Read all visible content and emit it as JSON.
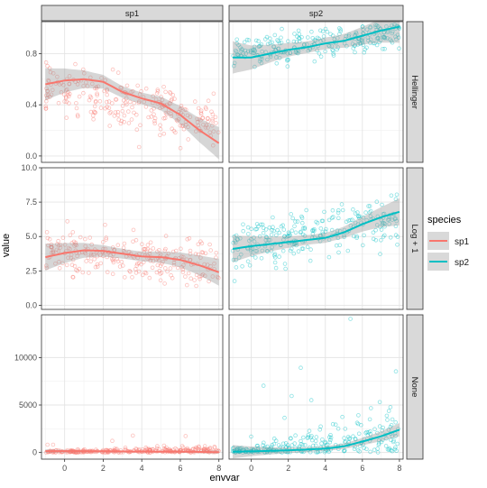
{
  "chart_data": {
    "type": "scatter",
    "facet_columns": [
      "sp1",
      "sp2"
    ],
    "facet_rows": [
      "Hellinger",
      "Log + 1",
      "None"
    ],
    "xlabel": "envvar",
    "ylabel": "value",
    "x_ticks": [
      0,
      2,
      4,
      6,
      8
    ],
    "xlim": [
      -1.2,
      8.2
    ],
    "scales": "free_y",
    "grid": true,
    "legend": {
      "title": "species",
      "placement": "right",
      "entries": [
        {
          "name": "sp1",
          "color": "#F8766D"
        },
        {
          "name": "sp2",
          "color": "#00BFC4"
        }
      ]
    },
    "panels": [
      {
        "row": "Hellinger",
        "ylim": [
          -0.05,
          1.05
        ],
        "y_ticks": [
          0.0,
          0.4,
          0.8
        ],
        "y_tick_labels": [
          "0.0",
          "0.4",
          "0.8"
        ],
        "sp1": {
          "smooth": [
            [
              -1,
              0.56
            ],
            [
              0,
              0.59
            ],
            [
              1,
              0.6
            ],
            [
              2,
              0.58
            ],
            [
              3,
              0.5
            ],
            [
              4,
              0.45
            ],
            [
              5,
              0.41
            ],
            [
              6,
              0.32
            ],
            [
              7,
              0.2
            ],
            [
              8,
              0.1
            ]
          ],
          "point_center": [
            [
              -1,
              0.55
            ],
            [
              8,
              0.25
            ]
          ],
          "point_spread": 0.22
        },
        "sp2": {
          "smooth": [
            [
              -1,
              0.77
            ],
            [
              0,
              0.77
            ],
            [
              1,
              0.8
            ],
            [
              2,
              0.83
            ],
            [
              3,
              0.85
            ],
            [
              4,
              0.88
            ],
            [
              5,
              0.9
            ],
            [
              6,
              0.94
            ],
            [
              7,
              0.98
            ],
            [
              8,
              1.01
            ]
          ],
          "point_center": [
            [
              -1,
              0.8
            ],
            [
              8,
              0.95
            ]
          ],
          "point_spread": 0.13
        }
      },
      {
        "row": "Log + 1",
        "ylim": [
          -0.3,
          10.0
        ],
        "y_ticks": [
          0.0,
          2.5,
          5.0,
          7.5,
          10.0
        ],
        "y_tick_labels": [
          "0.0",
          "2.5",
          "5.0",
          "7.5",
          "10.0"
        ],
        "sp1": {
          "smooth": [
            [
              -1,
              3.5
            ],
            [
              0,
              3.8
            ],
            [
              1,
              4.0
            ],
            [
              2,
              3.95
            ],
            [
              3,
              3.75
            ],
            [
              4,
              3.55
            ],
            [
              5,
              3.5
            ],
            [
              6,
              3.3
            ],
            [
              7,
              2.9
            ],
            [
              8,
              2.4
            ]
          ],
          "point_center": [
            [
              -1,
              4.0
            ],
            [
              8,
              3.0
            ]
          ],
          "point_spread": 1.7
        },
        "sp2": {
          "smooth": [
            [
              -1,
              4.1
            ],
            [
              0,
              4.3
            ],
            [
              1,
              4.45
            ],
            [
              2,
              4.6
            ],
            [
              3,
              4.75
            ],
            [
              4,
              4.9
            ],
            [
              5,
              5.3
            ],
            [
              6,
              5.9
            ],
            [
              7,
              6.4
            ],
            [
              8,
              6.8
            ]
          ],
          "point_center": [
            [
              -1,
              4.2
            ],
            [
              8,
              6.5
            ]
          ],
          "point_spread": 1.8
        }
      },
      {
        "row": "None",
        "ylim": [
          -700,
          14500
        ],
        "y_ticks": [
          0,
          5000,
          10000
        ],
        "y_tick_labels": [
          "0",
          "5000",
          "10000"
        ],
        "sp1": {
          "smooth": [
            [
              -1,
              150
            ],
            [
              0,
              150
            ],
            [
              1,
              140
            ],
            [
              2,
              130
            ],
            [
              3,
              110
            ],
            [
              4,
              100
            ],
            [
              5,
              90
            ],
            [
              6,
              80
            ],
            [
              7,
              60
            ],
            [
              8,
              40
            ]
          ],
          "point_center": [
            [
              -1,
              150
            ],
            [
              8,
              60
            ]
          ],
          "point_spread": 220
        },
        "sp2": {
          "smooth": [
            [
              -1,
              80
            ],
            [
              0,
              120
            ],
            [
              1,
              170
            ],
            [
              2,
              230
            ],
            [
              3,
              310
            ],
            [
              4,
              410
            ],
            [
              5,
              650
            ],
            [
              6,
              1150
            ],
            [
              7,
              1700
            ],
            [
              8,
              2400
            ]
          ],
          "point_center": [
            [
              -1,
              80
            ],
            [
              8,
              2000
            ]
          ],
          "point_spread": 500
        }
      }
    ]
  }
}
